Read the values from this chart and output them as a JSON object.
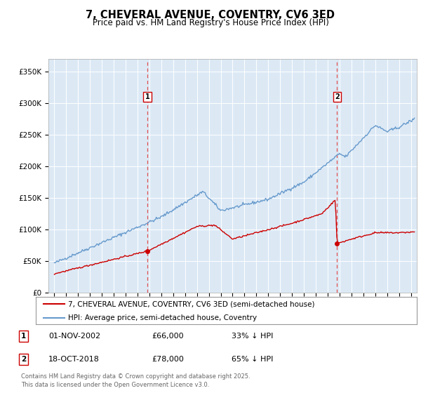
{
  "title": "7, CHEVERAL AVENUE, COVENTRY, CV6 3ED",
  "subtitle": "Price paid vs. HM Land Registry's House Price Index (HPI)",
  "bg_color": "#dce9f5",
  "red_color": "#cc0000",
  "blue_color": "#6699cc",
  "dashed_color": "#e05050",
  "marker1_year": 2002.83,
  "marker2_year": 2018.79,
  "marker1_date": "01-NOV-2002",
  "marker1_price": "£66,000",
  "marker1_hpi": "33% ↓ HPI",
  "marker2_date": "18-OCT-2018",
  "marker2_price": "£78,000",
  "marker2_hpi": "65% ↓ HPI",
  "legend_line1": "7, CHEVERAL AVENUE, COVENTRY, CV6 3ED (semi-detached house)",
  "legend_line2": "HPI: Average price, semi-detached house, Coventry",
  "footer": "Contains HM Land Registry data © Crown copyright and database right 2025.\nThis data is licensed under the Open Government Licence v3.0.",
  "ylim_max": 370000,
  "xlim_start": 1994.5,
  "xlim_end": 2025.5
}
